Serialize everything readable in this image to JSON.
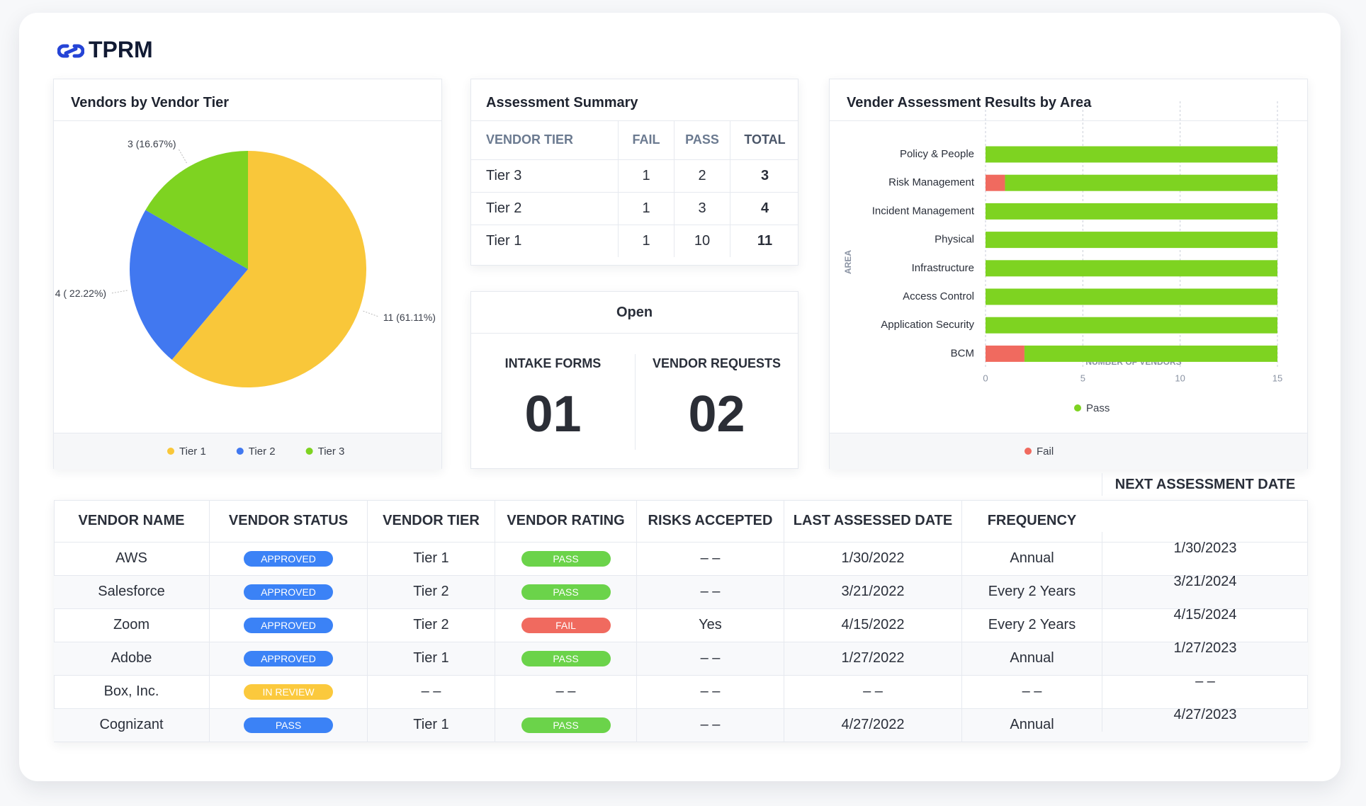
{
  "header": {
    "title": "TPRM"
  },
  "chart_data": [
    {
      "type": "pie",
      "title": "Vendors by Vendor Tier",
      "categories": [
        "Tier 1",
        "Tier 2",
        "Tier 3"
      ],
      "values": [
        11,
        4,
        3
      ],
      "value_labels": [
        "11 (61.11%)",
        "4 ( 22.22%)",
        "3 (16.67%)"
      ],
      "colors": [
        "#f9c73a",
        "#4178f0",
        "#7ed321"
      ]
    },
    {
      "type": "bar",
      "orientation": "horizontal",
      "stacked": true,
      "title": "Vender Assessment Results by Area",
      "categories": [
        "Policy & People",
        "Risk Management",
        "Incident Management",
        "Physical",
        "Infrastructure",
        "Access Control",
        "Application Security",
        "BCM"
      ],
      "series": [
        {
          "name": "Fail",
          "color": "#f06a5f",
          "values": [
            0,
            1,
            0,
            0,
            0,
            0,
            0,
            2
          ]
        },
        {
          "name": "Pass",
          "color": "#7ed321",
          "values": [
            15,
            14,
            15,
            15,
            15,
            15,
            15,
            13
          ]
        }
      ],
      "xlim": [
        0,
        15
      ],
      "xticks": [
        0,
        5,
        10,
        15
      ],
      "xlabel": "NUMBER OF VENDORS",
      "ylabel": "AREA",
      "grid": true
    }
  ],
  "assessment_summary": {
    "title": "Assessment Summary",
    "columns": [
      "VENDOR TIER",
      "FAIL",
      "PASS",
      "TOTAL"
    ],
    "rows": [
      [
        "Tier 3",
        1,
        2,
        3
      ],
      [
        "Tier 2",
        1,
        3,
        4
      ],
      [
        "Tier 1",
        1,
        10,
        11
      ]
    ]
  },
  "open": {
    "title": "Open",
    "items": [
      {
        "label": "INTAKE FORMS",
        "value": "01"
      },
      {
        "label": "VENDOR REQUESTS",
        "value": "02"
      }
    ]
  },
  "vendor_table": {
    "columns": [
      "VENDOR NAME",
      "VENDOR STATUS",
      "VENDOR TIER",
      "VENDOR RATING",
      "RISKS ACCEPTED",
      "LAST ASSESSED DATE",
      "FREQUENCY",
      "NEXT ASSESSMENT DATE"
    ],
    "rows": [
      [
        "AWS",
        "APPROVED",
        "Tier 1",
        "PASS",
        "– –",
        "1/30/2022",
        "Annual",
        "1/30/2023"
      ],
      [
        "Salesforce",
        "APPROVED",
        "Tier 2",
        "PASS",
        "– –",
        "3/21/2022",
        "Every 2 Years",
        "3/21/2024"
      ],
      [
        "Zoom",
        "APPROVED",
        "Tier 2",
        "FAIL",
        "Yes",
        "4/15/2022",
        "Every 2 Years",
        "4/15/2024"
      ],
      [
        "Adobe",
        "APPROVED",
        "Tier 1",
        "PASS",
        "– –",
        "1/27/2022",
        "Annual",
        "1/27/2023"
      ],
      [
        "Box, Inc.",
        "IN REVIEW",
        "– –",
        "– –",
        "– –",
        "– –",
        "– –",
        "– –"
      ],
      [
        "Cognizant",
        "PASS",
        "Tier 1",
        "PASS",
        "– –",
        "4/27/2022",
        "Annual",
        "4/27/2023"
      ]
    ],
    "badge_colors": [
      [
        "#3b82f6",
        "#6bd34a"
      ],
      [
        "#3b82f6",
        "#6bd34a"
      ],
      [
        "#3b82f6",
        "#f06a5f"
      ],
      [
        "#3b82f6",
        "#6bd34a"
      ],
      [
        "#fbc93d",
        null
      ],
      [
        "#3b82f6",
        "#6bd34a"
      ]
    ]
  }
}
